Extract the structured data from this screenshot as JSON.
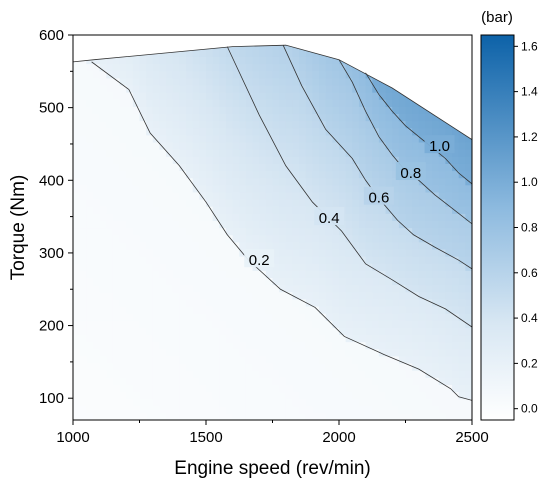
{
  "chart_data": {
    "type": "heatmap",
    "subtype": "filled-contour",
    "title": "",
    "xlabel": "Engine speed (rev/min)",
    "ylabel": "Torque (Nm)",
    "xlim": [
      1000,
      2500
    ],
    "ylim": [
      70,
      600
    ],
    "xticks": [
      1000,
      1500,
      2000,
      2500
    ],
    "yticks": [
      100,
      200,
      300,
      400,
      500,
      600
    ],
    "grid": false,
    "colorbar": {
      "unit_label": "(bar)",
      "range": [
        -0.05,
        1.65
      ],
      "ticks": [
        "0.0",
        "0.2",
        "0.4",
        "0.6",
        "0.8",
        "1.0",
        "1.2",
        "1.4",
        "1.6"
      ],
      "color_low": "#ffffff",
      "color_high": "#0d62a8"
    },
    "boundary": {
      "x": [
        1000,
        1080,
        1600,
        1800,
        2000,
        2200,
        2500
      ],
      "y": [
        563,
        566,
        584,
        586,
        566,
        527,
        456
      ]
    },
    "contours": [
      {
        "level": 0.2,
        "label": "0.2",
        "x": [
          1070,
          1210,
          1290,
          1400,
          1500,
          1580,
          1660,
          1780,
          1910,
          2020,
          2170,
          2300,
          2420,
          2450,
          2500
        ],
        "y": [
          563,
          525,
          465,
          420,
          370,
          325,
          290,
          250,
          225,
          185,
          160,
          140,
          113,
          102,
          97
        ],
        "label_x": 1700,
        "label_y": 290
      },
      {
        "level": 0.4,
        "label": "0.4",
        "x": [
          1580,
          1700,
          1800,
          1900,
          2010,
          2100,
          2200,
          2300,
          2400,
          2500
        ],
        "y": [
          584,
          490,
          420,
          370,
          330,
          285,
          263,
          240,
          223,
          198
        ],
        "label_x": 1963,
        "label_y": 348
      },
      {
        "level": 0.6,
        "label": "0.6",
        "x": [
          1790,
          1860,
          1950,
          2050,
          2100,
          2150,
          2220,
          2280,
          2360,
          2450,
          2500
        ],
        "y": [
          586,
          530,
          470,
          430,
          400,
          375,
          345,
          325,
          308,
          290,
          278
        ],
        "label_x": 2150,
        "label_y": 376
      },
      {
        "level": 0.8,
        "label": "0.8",
        "x": [
          2000,
          2050,
          2100,
          2150,
          2200,
          2250,
          2300,
          2360,
          2420,
          2500
        ],
        "y": [
          566,
          535,
          495,
          460,
          435,
          413,
          400,
          380,
          363,
          340
        ],
        "label_x": 2270,
        "label_y": 410
      },
      {
        "level": 1.0,
        "label": "1.0",
        "x": [
          2100,
          2150,
          2200,
          2250,
          2300,
          2350,
          2400,
          2450,
          2500
        ],
        "y": [
          548,
          518,
          495,
          475,
          460,
          445,
          430,
          410,
          395
        ],
        "label_x": 2378,
        "label_y": 447
      }
    ],
    "max_value": 1.65,
    "max_at": {
      "x": 2500,
      "y": 456
    }
  }
}
